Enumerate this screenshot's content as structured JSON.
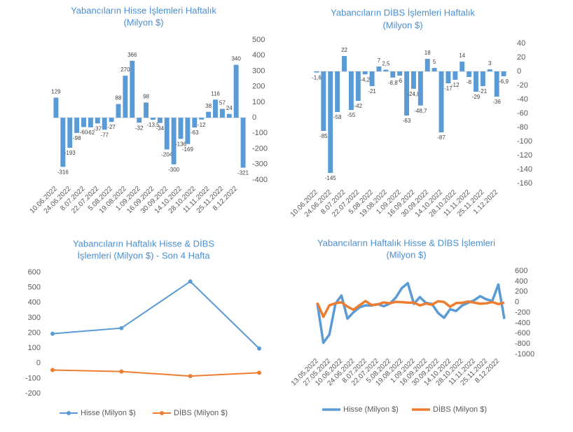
{
  "chart_data": [
    {
      "type": "bar",
      "title": [
        "Yabancıların Hisse İşlemleri Haftalık",
        "(Milyon $)"
      ],
      "categories": [
        "10.06.2022",
        null,
        "24.06.2022",
        null,
        "8.07.2022",
        null,
        "22.07.2022",
        null,
        "5.08.2022",
        null,
        "19.08.2022",
        null,
        "1.09.2022",
        null,
        "16.09.2022",
        null,
        "30.09.2022",
        null,
        "14.10.2022",
        null,
        "28.10.2022",
        null,
        "11.11.2022",
        null,
        "25.11.2022",
        null,
        "8.12.2022",
        null
      ],
      "values": [
        129,
        -316,
        -193,
        -98,
        -60,
        -62,
        -37,
        -77,
        -27,
        88,
        270,
        366,
        -32,
        98,
        -13.5,
        -34,
        -204,
        -300,
        -136,
        -169,
        -63,
        -12,
        38,
        116,
        57,
        24,
        340,
        -321
      ],
      "value_labels": [
        "129",
        "-316",
        "-193",
        "-98",
        "-60",
        "-62",
        "-37",
        "-77",
        "-27",
        "88",
        "270",
        "366",
        "-32",
        "98",
        "-13,5",
        "-34",
        "-204",
        "-300",
        "-136",
        "-169",
        "-63",
        "-12",
        "38",
        "116",
        "57",
        "24",
        "340",
        "-321"
      ],
      "color": "#5b9bd5",
      "ylim": [
        -400,
        500
      ],
      "yticks": [
        -400,
        -300,
        -200,
        -100,
        0,
        100,
        200,
        300,
        400,
        500
      ],
      "grid": false
    },
    {
      "type": "bar",
      "title": [
        "Yabancıların  DİBS İşlemleri Haftalık",
        "(Milyon $)"
      ],
      "categories": [
        "10.06.2022",
        null,
        "24.06.2022",
        null,
        "8.07.2022",
        null,
        "22.07.2022",
        null,
        "5.08.2022",
        null,
        "19.08.2022",
        null,
        "1.09.2022",
        null,
        "16.09.2022",
        null,
        "30.09.2022",
        null,
        "14.10.2022",
        null,
        "28.10.2022",
        null,
        "11.11.2022",
        null,
        "25.11.2022",
        null,
        "1.12.2022",
        null
      ],
      "values": [
        -1.6,
        -85,
        -145,
        -58,
        22,
        -55,
        -42,
        -4.2,
        -21,
        7,
        2.5,
        -8.8,
        -6,
        -63,
        -24.8,
        -48.7,
        18,
        5,
        -87,
        -17,
        -12,
        14,
        -8,
        -29,
        -21,
        3,
        -36,
        -6.9
      ],
      "value_labels": [
        "-1,6",
        "-85",
        "-145",
        "-58",
        "22",
        "-55",
        "-42",
        "-4,2",
        "-21",
        "7",
        "2,5",
        "-8,8",
        "-6",
        "-63",
        "-24,8",
        "-48,7",
        "18",
        "5",
        "-87",
        "-17",
        "-12",
        "14",
        "-8",
        "-29",
        "-21",
        "3",
        "-36",
        "-6,9"
      ],
      "color": "#5b9bd5",
      "ylim": [
        -160,
        40
      ],
      "yticks": [
        -160,
        -140,
        -120,
        -100,
        -80,
        -60,
        -40,
        -20,
        0,
        20,
        40
      ],
      "grid": false
    },
    {
      "type": "line",
      "title": [
        "Yabancıların  Haftalık Hisse & DİBS",
        "İşlemleri  (Milyon $) - Son 4 Hafta"
      ],
      "categories": [
        null,
        null,
        null,
        null
      ],
      "series": [
        {
          "name": "Hisse (Milyon $)",
          "color": "#5b9bd5",
          "values": [
            195,
            232,
            540,
            97
          ]
        },
        {
          "name": "DİBS (Milyon $)",
          "color": "#ed7d31",
          "values": [
            -45,
            -55,
            -85,
            -63
          ]
        }
      ],
      "ylim": [
        -200,
        600
      ],
      "yticks": [
        -200,
        -100,
        0,
        100,
        200,
        300,
        400,
        500,
        600
      ],
      "markers": true,
      "legend": "bottom"
    },
    {
      "type": "line",
      "title": [
        "Yabancıların Haftalık Hisse & DİBS İşlemleri",
        "(Milyon $)"
      ],
      "categories": [
        "13.05.2022",
        null,
        "27.05.2022",
        null,
        "10.06.2022",
        null,
        "24.06.2022",
        null,
        "8.07.2022",
        null,
        "22.07.2022",
        null,
        "5.08.2022",
        null,
        "19.08.2022",
        null,
        "1.09.2022",
        null,
        "16.09.2022",
        null,
        "30.09.2022",
        null,
        "14.10.2022",
        null,
        "28.10.2022",
        null,
        "11.11.2022",
        null,
        "25.11.2022",
        null,
        "8.12.2022",
        null
      ],
      "series": [
        {
          "name": "Hisse (Milyon $)",
          "color": "#5b9bd5",
          "values": [
            -20,
            -780,
            -620,
            -30,
            129,
            -316,
            -193,
            -98,
            -60,
            -62,
            -37,
            -77,
            -27,
            88,
            270,
            366,
            -32,
            98,
            -13.5,
            -34,
            -204,
            -300,
            -136,
            -169,
            -63,
            -12,
            38,
            116,
            57,
            24,
            340,
            -321
          ]
        },
        {
          "name": "DİBS (Milyon $)",
          "color": "#ed7d31",
          "values": [
            -10,
            -280,
            -60,
            -20,
            -1.6,
            -85,
            -145,
            -58,
            22,
            -55,
            -42,
            -4.2,
            -21,
            7,
            2.5,
            -8.8,
            -6,
            -63,
            -24.8,
            -48.7,
            18,
            5,
            -87,
            -17,
            -12,
            14,
            -8,
            -29,
            -21,
            3,
            -36,
            -6.9
          ]
        }
      ],
      "ylim": [
        -1000,
        600
      ],
      "yticks": [
        -1000,
        -800,
        -600,
        -400,
        -200,
        0,
        200,
        400,
        600
      ],
      "markers": false,
      "legend": "bottom"
    }
  ]
}
